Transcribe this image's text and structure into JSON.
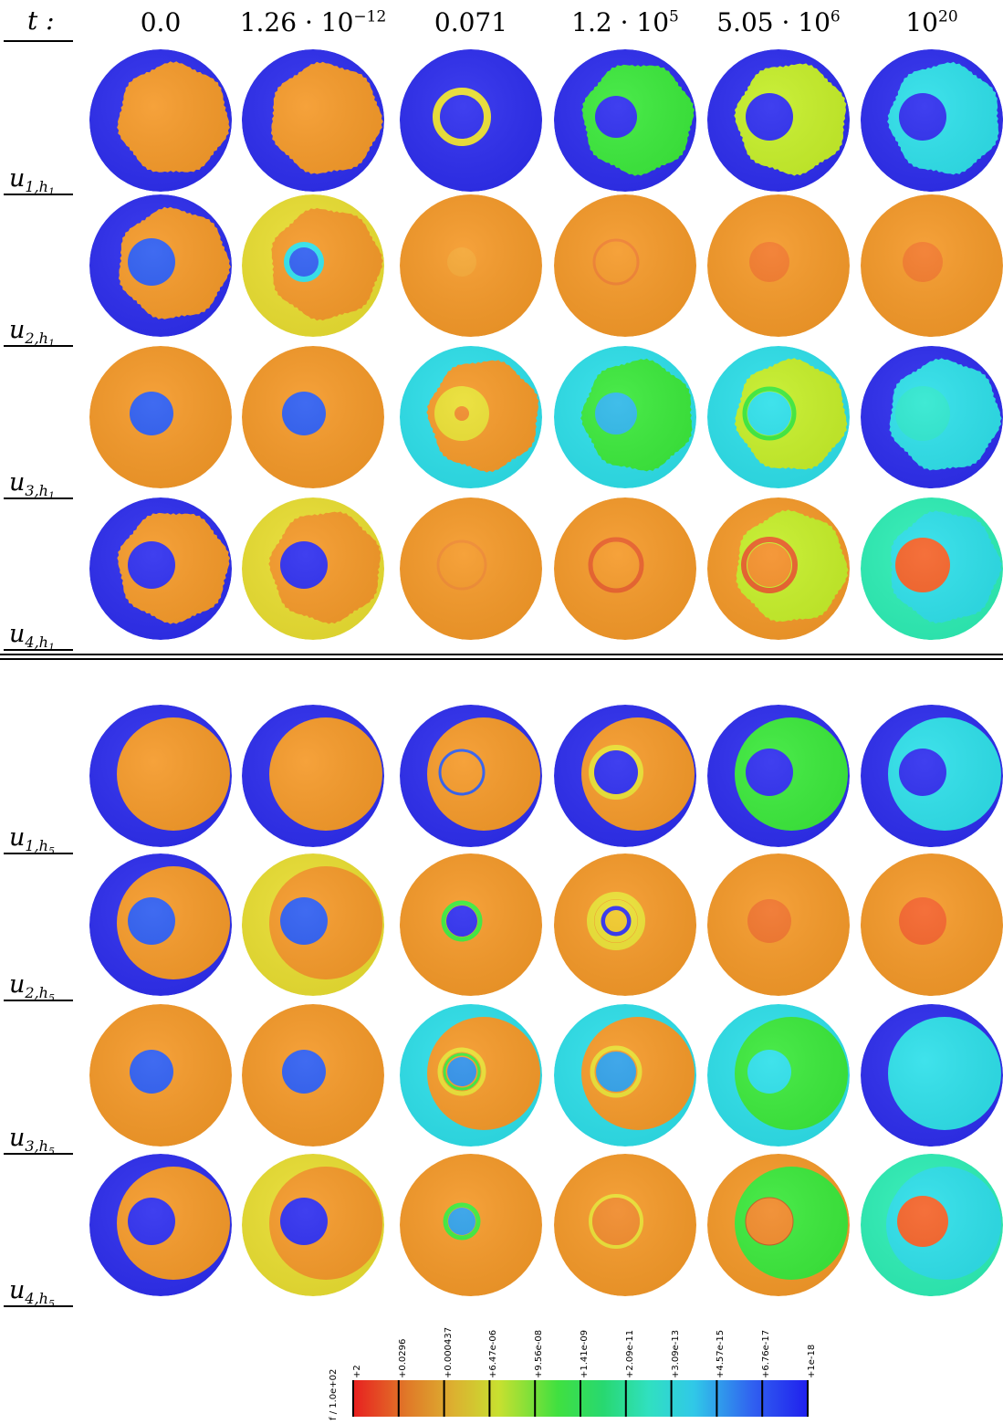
{
  "figure": {
    "t_label": "t :",
    "time_labels": [
      {
        "base": "0.0",
        "sup": ""
      },
      {
        "base": "1.26 · 10",
        "sup": "−12"
      },
      {
        "base": "0.071",
        "sup": ""
      },
      {
        "base": "1.2 · 10",
        "sup": "5"
      },
      {
        "base": "5.05 · 10",
        "sup": "6"
      },
      {
        "base": "10",
        "sup": "20"
      }
    ],
    "row_labels": [
      {
        "u": "u",
        "sub": "1,h",
        "subsub": "1"
      },
      {
        "u": "u",
        "sub": "2,h",
        "subsub": "1"
      },
      {
        "u": "u",
        "sub": "3,h",
        "subsub": "1"
      },
      {
        "u": "u",
        "sub": "4,h",
        "subsub": "1"
      },
      {
        "u": "u",
        "sub": "1,h",
        "subsub": "5"
      },
      {
        "u": "u",
        "sub": "2,h",
        "subsub": "5"
      },
      {
        "u": "u",
        "sub": "3,h",
        "subsub": "5"
      },
      {
        "u": "u",
        "sub": "4,h",
        "subsub": "5"
      }
    ]
  },
  "colors": {
    "blue": "#2f2fee",
    "lightblue": "#2f5ef0",
    "orange": "#f59a2a",
    "dorange": "#ef8a2a",
    "yellow": "#eadf33",
    "lime": "#c6ef2a",
    "green": "#3ce93c",
    "cyan": "#2fe0ea",
    "teal": "#2fefb6",
    "redorange": "#f4642a"
  },
  "colorbar": {
    "title": "f / 1.0e+02",
    "ticks": [
      "+2",
      "+0.0296",
      "+0.000437",
      "+6.47e-06",
      "+9.56e-08",
      "+1.41e-09",
      "+2.09e-11",
      "+3.09e-13",
      "+4.57e-15",
      "+6.76e-17",
      "+1e-18"
    ],
    "stops": [
      "#e82020",
      "#e0a030",
      "#d8d030",
      "#a8e030",
      "#40e040",
      "#28d870",
      "#30e0c0",
      "#30c8e8",
      "#3060f0",
      "#2020ee"
    ]
  },
  "cells": [
    [
      "bluebg-orange-rough",
      "bluebg-orange-rough",
      "bluebg-ring-yellow",
      "bluebg-ring-green",
      "bluebg-lime-hole",
      "bluebg-cyan-hole"
    ],
    [
      "bluebg-orange-dot",
      "yellow-orange-dot-cyan",
      "orange-plain-faint",
      "orange-plain-ring",
      "orange-plain-dot",
      "orange-plain-dot"
    ],
    [
      "orange-bluedot",
      "orange-bluedot",
      "cyan-orange-yellowdot",
      "cyan-orange-greenring",
      "cyan-lime-cyandot",
      "bluebg-cyan-plain"
    ],
    [
      "bluebg-orange-hole",
      "yellow-orange-hole",
      "orange-plain-ringfaint",
      "orange-ring-red",
      "orange-lime-ringred",
      "teal-cyan-reddot"
    ],
    [
      "bluebg-orange-smooth",
      "bluebg-orange-smooth",
      "bluebg-orange-thinring",
      "bluebg-orange-yellowhole",
      "bluebg-green-hole",
      "bluebg-cyan-hole2"
    ],
    [
      "bluebg-orange-bluedot",
      "yellow-orange-bluedot",
      "orange-ring-navy",
      "orange-ring-yellow",
      "orange-dot-soft",
      "orange-dot-red"
    ],
    [
      "orange-bluedot2",
      "orange-bluedot2",
      "cyan-orange-rings",
      "cyan-orange-yellowring",
      "cyan-green-cyandot",
      "bluebg-cyan-disk"
    ],
    [
      "bluebg-orange-hole",
      "yellow-orange-navydisk",
      "orange-ring-cyan",
      "orange-yellow-edge-disk",
      "orange-green-orangedisk",
      "teal-cyan-reddisk"
    ]
  ]
}
